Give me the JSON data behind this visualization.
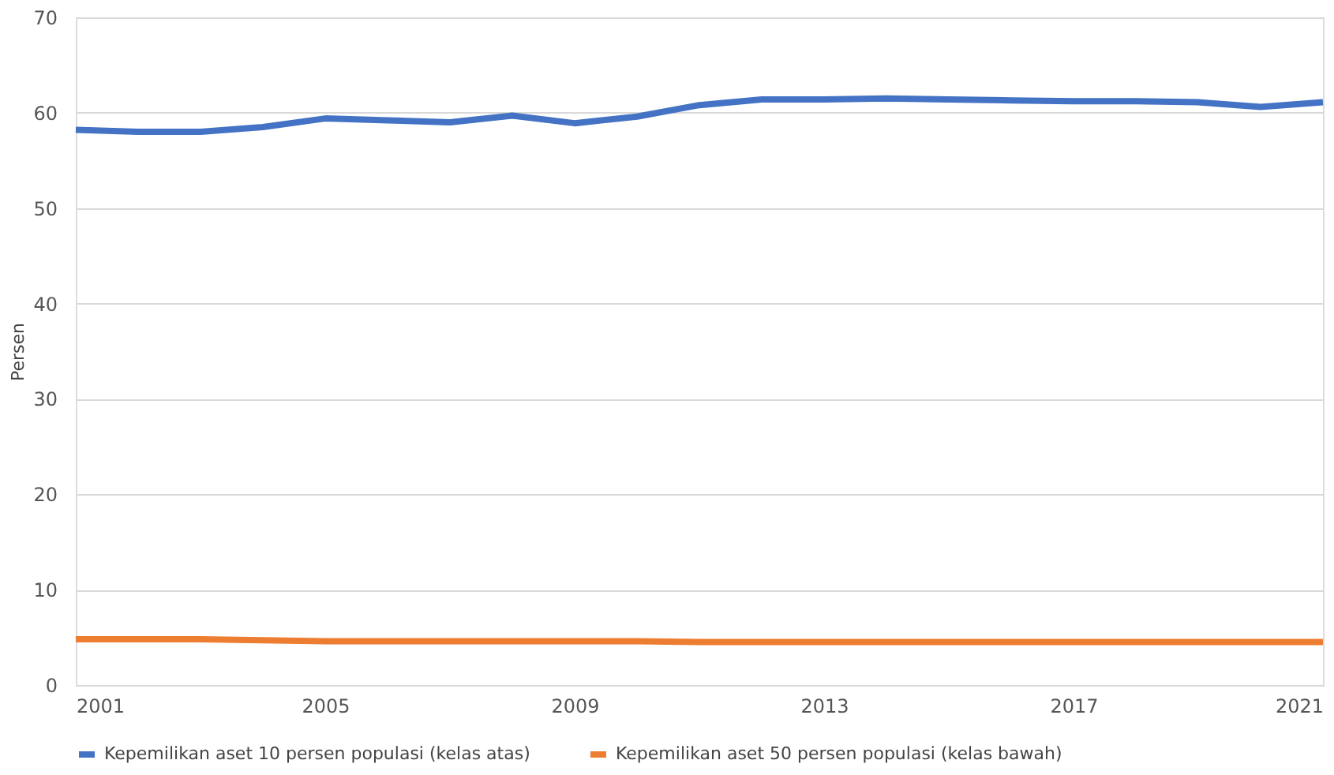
{
  "chart_data": {
    "type": "line",
    "ylabel": "Persen",
    "x": [
      2001,
      2002,
      2003,
      2004,
      2005,
      2006,
      2007,
      2008,
      2009,
      2010,
      2011,
      2012,
      2013,
      2014,
      2015,
      2016,
      2017,
      2018,
      2019,
      2020,
      2021
    ],
    "series": [
      {
        "name": "Kepemilikan aset 10 persen populasi (kelas atas)",
        "color": "#4472c4",
        "values": [
          58.2,
          58.0,
          58.0,
          58.5,
          59.4,
          59.2,
          59.0,
          59.7,
          58.9,
          59.6,
          60.8,
          61.4,
          61.4,
          61.5,
          61.4,
          61.3,
          61.2,
          61.2,
          61.1,
          60.6,
          61.1
        ]
      },
      {
        "name": "Kepemilikan aset 50 persen populasi (kelas bawah)",
        "color": "#ed7d31",
        "values": [
          4.8,
          4.8,
          4.8,
          4.7,
          4.6,
          4.6,
          4.6,
          4.6,
          4.6,
          4.6,
          4.5,
          4.5,
          4.5,
          4.5,
          4.5,
          4.5,
          4.5,
          4.5,
          4.5,
          4.5,
          4.5
        ]
      }
    ],
    "xlim": [
      2001,
      2021
    ],
    "xticks": [
      2001,
      2005,
      2009,
      2013,
      2017,
      2021
    ],
    "ylim": [
      0,
      70
    ],
    "yticks": [
      0,
      10,
      20,
      30,
      40,
      50,
      60,
      70
    ],
    "grid": "y",
    "legend": "bottom",
    "marker": "none",
    "line_style": "solid"
  }
}
